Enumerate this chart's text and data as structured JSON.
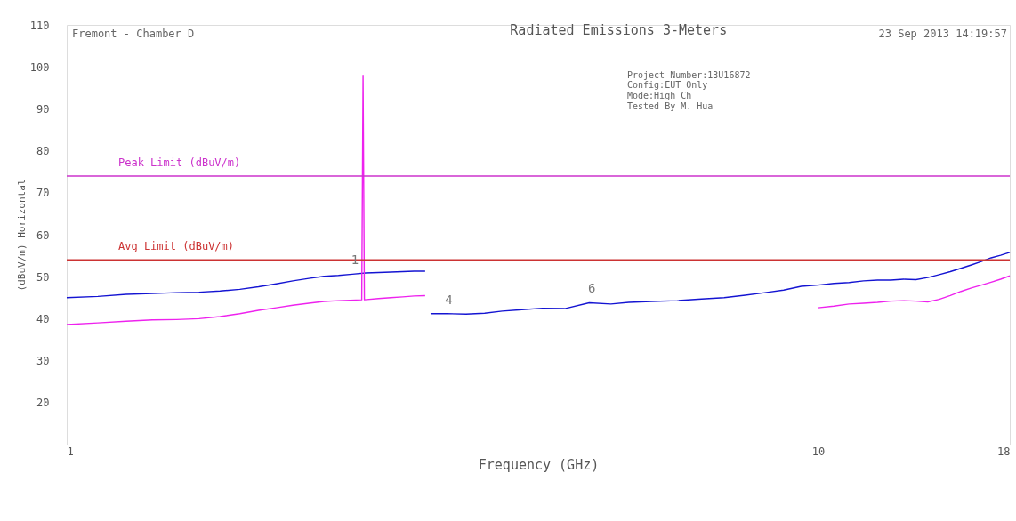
{
  "chart_data": {
    "type": "line",
    "title": "Radiated Emissions 3-Meters",
    "xlabel": "Frequency (GHz)",
    "ylabel": "(dBuV/m) Horizontal",
    "log": "x",
    "xlim": [
      1,
      18
    ],
    "xticks": [
      1,
      10,
      18
    ],
    "ylim": [
      10,
      110
    ],
    "yticks": [
      20,
      30,
      40,
      50,
      60,
      70,
      80,
      90,
      100,
      110
    ],
    "grid": false,
    "series": [
      {
        "color": "#1414d2",
        "x": [
          1,
          1.1,
          1.2,
          1.3,
          1.4,
          1.5,
          1.6,
          1.7,
          1.8,
          1.9,
          2.0,
          2.1,
          2.2,
          2.3,
          2.4,
          2.5,
          2.6,
          2.7,
          2.8,
          2.9,
          3.0
        ],
        "values": [
          45,
          45.3,
          45.8,
          46,
          46.2,
          46.3,
          46.6,
          47,
          47.6,
          48.3,
          49,
          49.6,
          50.1,
          50.3,
          50.6,
          50.9,
          51,
          51.1,
          51.2,
          51.3,
          51.3
        ]
      },
      {
        "color": "#1414d2",
        "x": [
          3.05,
          3.2,
          3.4,
          3.6,
          3.8,
          4.0,
          4.3,
          4.6,
          4.96,
          5.3,
          5.6,
          6.0,
          6.5,
          7.0,
          7.5,
          8.0,
          8.5,
          9.0,
          9.5,
          10.0,
          10.5,
          11.0,
          11.5,
          12.0,
          12.5,
          13.0,
          13.5,
          14.0,
          14.5,
          15.0,
          15.5,
          16.0,
          16.5,
          17.0,
          17.5,
          18.0
        ],
        "values": [
          41.2,
          41.2,
          41.1,
          41.3,
          41.8,
          42.1,
          42.5,
          42.4,
          43.8,
          43.5,
          43.9,
          44.1,
          44.3,
          44.7,
          45,
          45.6,
          46.2,
          46.8,
          47.7,
          48,
          48.4,
          48.6,
          49,
          49.2,
          49.2,
          49.4,
          49.3,
          49.8,
          50.5,
          51.2,
          52,
          52.8,
          53.6,
          54.5,
          55.1,
          55.8
        ]
      },
      {
        "color": "#ee22ee",
        "x": [
          1,
          1.1,
          1.2,
          1.3,
          1.4,
          1.5,
          1.6,
          1.7,
          1.8,
          1.9,
          2.0,
          2.1,
          2.2,
          2.3,
          2.47,
          2.48,
          2.49,
          2.6,
          2.7,
          2.8,
          2.9,
          3.0
        ],
        "values": [
          38.6,
          39,
          39.4,
          39.7,
          39.8,
          40,
          40.5,
          41.2,
          42,
          42.6,
          43.2,
          43.7,
          44.1,
          44.3,
          44.5,
          98,
          44.5,
          44.8,
          45,
          45.2,
          45.4,
          45.5
        ]
      },
      {
        "color": "#ee22ee",
        "x": [
          10.0,
          10.5,
          11.0,
          11.5,
          12.0,
          12.5,
          13.0,
          13.5,
          14.0,
          14.5,
          15.0,
          15.5,
          16.0,
          16.5,
          17.0,
          17.5,
          18.0
        ],
        "values": [
          42.6,
          43,
          43.5,
          43.7,
          43.9,
          44.2,
          44.3,
          44.2,
          44,
          44.6,
          45.5,
          46.5,
          47.3,
          48,
          48.7,
          49.4,
          50.2
        ]
      }
    ],
    "ref_lines": [
      {
        "axis": "y",
        "value": 74,
        "label": "Peak Limit (dBuV/m)",
        "color": "#cc33cc"
      },
      {
        "axis": "y",
        "value": 54,
        "label": "Avg Limit (dBuV/m)",
        "color": "#cc3333"
      }
    ],
    "annotations": [
      "Fremont - Chamber D",
      "23 Sep 2013   14:19:57",
      "Project Number:13U16872",
      "Config:EUT Only",
      "Mode:High Ch",
      "Tested By M. Hua",
      {
        "text": "1",
        "x": 2.4,
        "y": 50.6
      },
      {
        "text": "4",
        "x": 3.2,
        "y": 41.2
      },
      {
        "text": "6",
        "x": 4.96,
        "y": 43.8
      }
    ]
  }
}
